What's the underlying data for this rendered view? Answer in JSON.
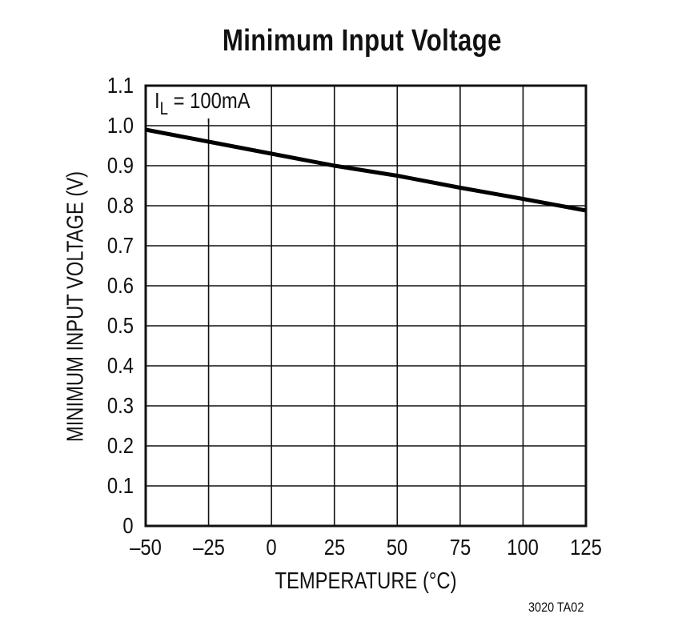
{
  "chart_data": {
    "type": "line",
    "title": "Minimum Input Voltage",
    "xlabel": "TEMPERATURE (°C)",
    "ylabel": "MINIMUM INPUT VOLTAGE (V)",
    "xlim": [
      -50,
      125
    ],
    "ylim": [
      0,
      1.1
    ],
    "x_ticks": [
      "–50",
      "–25",
      "0",
      "25",
      "50",
      "75",
      "100",
      "125"
    ],
    "y_ticks": [
      "0",
      "0.1",
      "0.2",
      "0.3",
      "0.4",
      "0.5",
      "0.6",
      "0.7",
      "0.8",
      "0.9",
      "1.0",
      "1.1"
    ],
    "grid": true,
    "annotation": "IL = 100mA",
    "series": [
      {
        "name": "IL = 100mA",
        "x": [
          -50,
          -25,
          0,
          25,
          50,
          75,
          100,
          125
        ],
        "values": [
          0.99,
          0.96,
          0.93,
          0.9,
          0.875,
          0.845,
          0.817,
          0.788
        ]
      }
    ],
    "footnote": "3020 TA02"
  },
  "legend": {
    "main": "I",
    "sub": "L",
    "rest": " = 100mA"
  },
  "footnote": "3020 TA02"
}
